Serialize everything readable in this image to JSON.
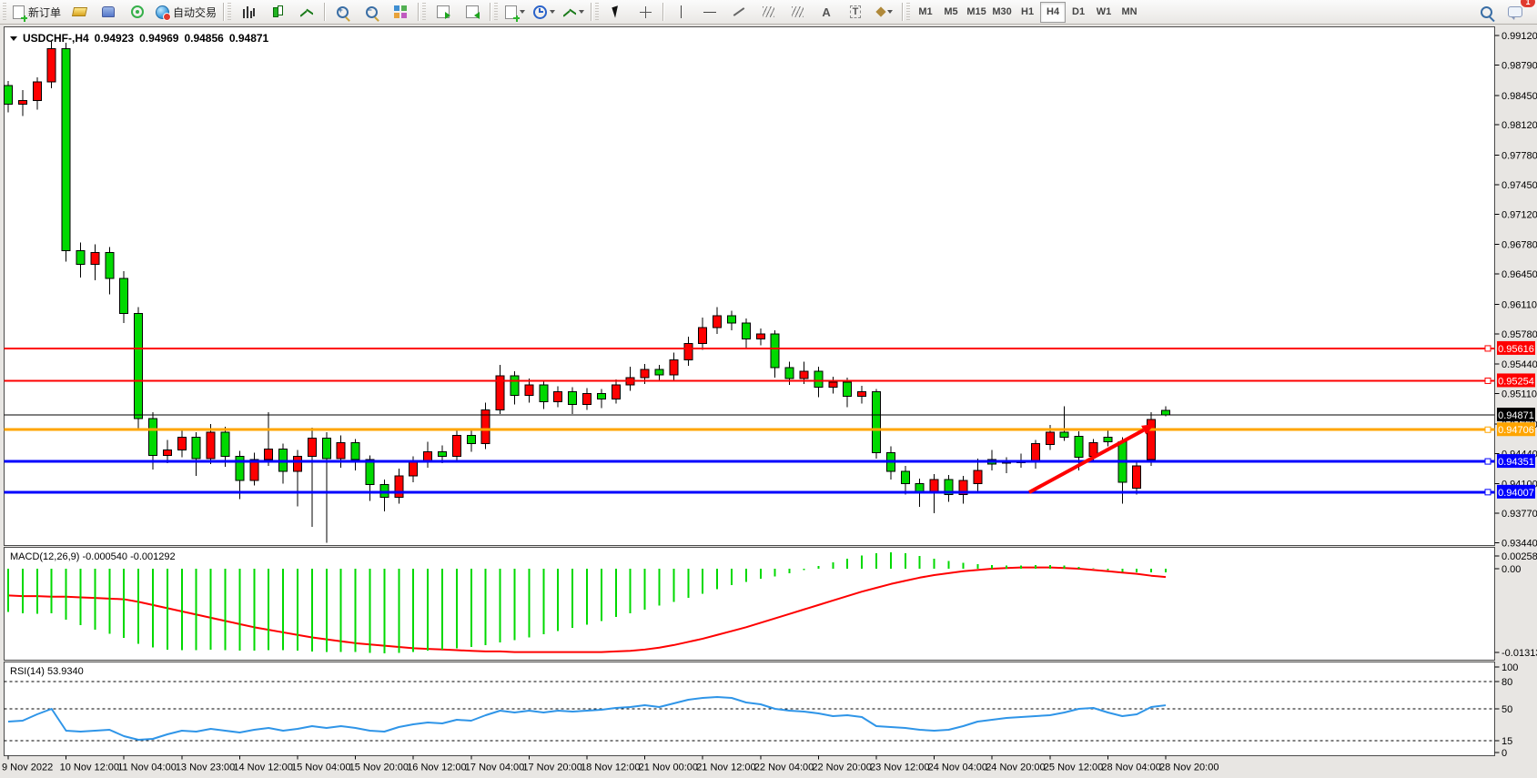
{
  "toolbar": {
    "new_order_label": "新订单",
    "autotrade_label": "自动交易",
    "text_tool_glyph": "A",
    "label_tool_glyph": "T",
    "timeframes": [
      "M1",
      "M5",
      "M15",
      "M30",
      "H1",
      "H4",
      "D1",
      "W1",
      "MN"
    ],
    "active_timeframe": "H4",
    "notification_badge": "1"
  },
  "chart": {
    "title": {
      "symbol_tf": "USDCHF-,H4",
      "open": "0.94923",
      "high": "0.94969",
      "low": "0.94856",
      "close": "0.94871"
    }
  },
  "chart_data": {
    "type": "candlestick",
    "symbol": "USDCHF-",
    "timeframe": "H4",
    "colors": {
      "bull": "#fe0000",
      "bear": "#00d900",
      "wick": "#000000",
      "background": "#ffffff",
      "border": "#4a4a4a"
    },
    "y_axis": {
      "min": 0.9344,
      "max": 0.9912,
      "ticks": [
        "0.99120",
        "0.98790",
        "0.98450",
        "0.98120",
        "0.97780",
        "0.97450",
        "0.97120",
        "0.96780",
        "0.96450",
        "0.96110",
        "0.95780",
        "0.95440",
        "0.95110",
        "0.94770",
        "0.94440",
        "0.94100",
        "0.93770",
        "0.93440"
      ]
    },
    "x_axis": {
      "bars_per_label": 4,
      "labels": [
        "9 Nov 2022",
        "10 Nov 12:00",
        "11 Nov 04:00",
        "13 Nov 23:00",
        "14 Nov 12:00",
        "15 Nov 04:00",
        "15 Nov 20:00",
        "16 Nov 12:00",
        "17 Nov 04:00",
        "17 Nov 20:00",
        "18 Nov 12:00",
        "21 Nov 00:00",
        "21 Nov 12:00",
        "22 Nov 04:00",
        "22 Nov 20:00",
        "23 Nov 12:00",
        "24 Nov 04:00",
        "24 Nov 20:00",
        "25 Nov 12:00",
        "28 Nov 04:00",
        "28 Nov 20:00"
      ]
    },
    "candles": [
      [
        0.9856,
        0.9861,
        0.9826,
        0.9835
      ],
      [
        0.9835,
        0.9851,
        0.9822,
        0.9839
      ],
      [
        0.9839,
        0.9865,
        0.9829,
        0.986
      ],
      [
        0.986,
        0.9906,
        0.9853,
        0.9897
      ],
      [
        0.9897,
        0.9904,
        0.9659,
        0.9671
      ],
      [
        0.9671,
        0.968,
        0.9641,
        0.9656
      ],
      [
        0.9656,
        0.9678,
        0.9638,
        0.9669
      ],
      [
        0.9669,
        0.9675,
        0.9622,
        0.964
      ],
      [
        0.964,
        0.9648,
        0.959,
        0.9601
      ],
      [
        0.9601,
        0.9608,
        0.947,
        0.9483
      ],
      [
        0.9483,
        0.949,
        0.9426,
        0.9442
      ],
      [
        0.9442,
        0.9459,
        0.9433,
        0.9448
      ],
      [
        0.9448,
        0.9471,
        0.944,
        0.9462
      ],
      [
        0.9462,
        0.9468,
        0.9419,
        0.9438
      ],
      [
        0.9438,
        0.9477,
        0.9432,
        0.9468
      ],
      [
        0.9468,
        0.9474,
        0.9429,
        0.9441
      ],
      [
        0.9441,
        0.9447,
        0.9393,
        0.9414
      ],
      [
        0.9414,
        0.9445,
        0.9408,
        0.9437
      ],
      [
        0.9437,
        0.949,
        0.943,
        0.9449
      ],
      [
        0.9449,
        0.9455,
        0.941,
        0.9424
      ],
      [
        0.9424,
        0.9448,
        0.9385,
        0.9441
      ],
      [
        0.9441,
        0.9473,
        0.9362,
        0.9461
      ],
      [
        0.9461,
        0.9468,
        0.9344,
        0.9438
      ],
      [
        0.9438,
        0.9464,
        0.9428,
        0.9456
      ],
      [
        0.9456,
        0.946,
        0.9425,
        0.9437
      ],
      [
        0.9437,
        0.9442,
        0.9391,
        0.9409
      ],
      [
        0.9409,
        0.9415,
        0.9379,
        0.9395
      ],
      [
        0.9395,
        0.9427,
        0.9388,
        0.9419
      ],
      [
        0.9419,
        0.9441,
        0.9412,
        0.9436
      ],
      [
        0.9436,
        0.9457,
        0.9428,
        0.9446
      ],
      [
        0.9446,
        0.9453,
        0.9433,
        0.9441
      ],
      [
        0.9441,
        0.9472,
        0.9435,
        0.9464
      ],
      [
        0.9464,
        0.947,
        0.9446,
        0.9455
      ],
      [
        0.9455,
        0.9501,
        0.9449,
        0.9493
      ],
      [
        0.9493,
        0.9543,
        0.9488,
        0.9531
      ],
      [
        0.9531,
        0.9536,
        0.9499,
        0.9509
      ],
      [
        0.9509,
        0.9528,
        0.9501,
        0.9521
      ],
      [
        0.9521,
        0.9526,
        0.9494,
        0.9502
      ],
      [
        0.9502,
        0.9519,
        0.9496,
        0.9513
      ],
      [
        0.9513,
        0.9518,
        0.9488,
        0.9499
      ],
      [
        0.9499,
        0.9517,
        0.9493,
        0.9511
      ],
      [
        0.9511,
        0.9516,
        0.9495,
        0.9505
      ],
      [
        0.9505,
        0.9527,
        0.95,
        0.9521
      ],
      [
        0.9521,
        0.9541,
        0.9514,
        0.9529
      ],
      [
        0.9529,
        0.9544,
        0.9522,
        0.9538
      ],
      [
        0.9538,
        0.9543,
        0.9525,
        0.9532
      ],
      [
        0.9532,
        0.9557,
        0.9526,
        0.9549
      ],
      [
        0.9549,
        0.9575,
        0.9542,
        0.9567
      ],
      [
        0.9567,
        0.9596,
        0.956,
        0.9585
      ],
      [
        0.9585,
        0.9608,
        0.9578,
        0.9598
      ],
      [
        0.9598,
        0.9604,
        0.9582,
        0.959
      ],
      [
        0.959,
        0.9595,
        0.9561,
        0.9572
      ],
      [
        0.9572,
        0.9584,
        0.9565,
        0.9578
      ],
      [
        0.9578,
        0.9582,
        0.9529,
        0.954
      ],
      [
        0.954,
        0.9547,
        0.9521,
        0.9528
      ],
      [
        0.9528,
        0.9547,
        0.9522,
        0.9536
      ],
      [
        0.9536,
        0.9541,
        0.9507,
        0.9518
      ],
      [
        0.9518,
        0.953,
        0.9511,
        0.9524
      ],
      [
        0.9524,
        0.9529,
        0.9496,
        0.9508
      ],
      [
        0.9508,
        0.952,
        0.95,
        0.9513
      ],
      [
        0.9513,
        0.9516,
        0.9438,
        0.9445
      ],
      [
        0.9445,
        0.9452,
        0.9415,
        0.9424
      ],
      [
        0.9424,
        0.943,
        0.9398,
        0.941
      ],
      [
        0.941,
        0.9416,
        0.9384,
        0.94
      ],
      [
        0.94,
        0.9421,
        0.9377,
        0.9415
      ],
      [
        0.9415,
        0.942,
        0.939,
        0.9398
      ],
      [
        0.9398,
        0.9419,
        0.9388,
        0.9414
      ],
      [
        0.941,
        0.9438,
        0.9402,
        0.9425
      ],
      [
        0.9437,
        0.9448,
        0.9425,
        0.9432
      ],
      [
        0.9433,
        0.944,
        0.9422,
        0.9435
      ],
      [
        0.9435,
        0.9444,
        0.9428,
        0.9434
      ],
      [
        0.9435,
        0.9459,
        0.9427,
        0.9455
      ],
      [
        0.9454,
        0.9476,
        0.9448,
        0.9468
      ],
      [
        0.9468,
        0.9497,
        0.9458,
        0.9462
      ],
      [
        0.9463,
        0.9469,
        0.9425,
        0.944
      ],
      [
        0.9441,
        0.946,
        0.9434,
        0.9456
      ],
      [
        0.9462,
        0.947,
        0.9452,
        0.9457
      ],
      [
        0.9457,
        0.9462,
        0.9388,
        0.9412
      ],
      [
        0.9405,
        0.9434,
        0.9398,
        0.943
      ],
      [
        0.9437,
        0.949,
        0.943,
        0.9482
      ],
      [
        0.94923,
        0.94969,
        0.94856,
        0.94871
      ]
    ],
    "horizontal_lines": [
      {
        "price": 0.95616,
        "tag": "0.95616",
        "color": "#fe0000",
        "width": 2,
        "anchor": true
      },
      {
        "price": 0.95254,
        "tag": "0.95254",
        "color": "#fe0000",
        "width": 2,
        "anchor": true
      },
      {
        "price": 0.94871,
        "tag": "0.94871",
        "color": "#000000",
        "width": 1,
        "anchor": false
      },
      {
        "price": 0.94706,
        "tag": "0.94706",
        "color": "#ffa500",
        "width": 3,
        "anchor": true
      },
      {
        "price": 0.94351,
        "tag": "0.94351",
        "color": "#0000fe",
        "width": 3,
        "anchor": true
      },
      {
        "price": 0.94007,
        "tag": "0.94007",
        "color": "#0000fe",
        "width": 3,
        "anchor": true
      }
    ],
    "current_price": "0.94871",
    "macd": {
      "label": "MACD(12,26,9)",
      "display_values": "-0.000540 -0.001292",
      "axis_labels": [
        "0.002587",
        "0.00",
        "-0.013133"
      ],
      "histogram_color": "#00d900",
      "signal_color": "#fe0000",
      "histogram": [
        -0.0068,
        -0.007,
        -0.0071,
        -0.007,
        -0.008,
        -0.0089,
        -0.0096,
        -0.0102,
        -0.0109,
        -0.0118,
        -0.0124,
        -0.0127,
        -0.0128,
        -0.0128,
        -0.0127,
        -0.0128,
        -0.0129,
        -0.0129,
        -0.0128,
        -0.0128,
        -0.0129,
        -0.013,
        -0.0131,
        -0.0131,
        -0.0131,
        -0.0132,
        -0.0133,
        -0.0132,
        -0.0131,
        -0.0129,
        -0.0127,
        -0.0125,
        -0.0123,
        -0.012,
        -0.0116,
        -0.0112,
        -0.0108,
        -0.0103,
        -0.0098,
        -0.0093,
        -0.0088,
        -0.0082,
        -0.0076,
        -0.007,
        -0.0064,
        -0.0058,
        -0.0052,
        -0.0046,
        -0.0039,
        -0.0032,
        -0.0026,
        -0.0021,
        -0.0016,
        -0.0012,
        -0.0007,
        -0.0002,
        0.0004,
        0.001,
        0.0016,
        0.0021,
        0.0024,
        0.0026,
        0.0024,
        0.002,
        0.0016,
        0.0012,
        0.0009,
        0.0007,
        0.0006,
        0.0005,
        0.0005,
        0.0006,
        0.0006,
        0.0005,
        0.0003,
        0.0001,
        -0.0002,
        -0.0005,
        -0.0006,
        -0.0006,
        -0.00054
      ],
      "signal": [
        -0.0042,
        -0.0043,
        -0.0043,
        -0.0044,
        -0.0044,
        -0.0045,
        -0.0046,
        -0.0047,
        -0.0048,
        -0.0052,
        -0.0057,
        -0.0062,
        -0.0067,
        -0.0072,
        -0.0077,
        -0.0082,
        -0.0087,
        -0.0092,
        -0.0096,
        -0.01,
        -0.0104,
        -0.0108,
        -0.0111,
        -0.0114,
        -0.0117,
        -0.0119,
        -0.0121,
        -0.0123,
        -0.0125,
        -0.0126,
        -0.0127,
        -0.0128,
        -0.0129,
        -0.013,
        -0.013,
        -0.0131,
        -0.0131,
        -0.0131,
        -0.0131,
        -0.0131,
        -0.0131,
        -0.0131,
        -0.013,
        -0.0129,
        -0.0127,
        -0.0124,
        -0.012,
        -0.0115,
        -0.011,
        -0.0104,
        -0.0098,
        -0.0092,
        -0.0085,
        -0.0078,
        -0.0071,
        -0.0064,
        -0.0057,
        -0.005,
        -0.0043,
        -0.0036,
        -0.003,
        -0.0024,
        -0.0019,
        -0.0014,
        -0.001,
        -0.0007,
        -0.0004,
        -0.0002,
        0.0,
        0.0001,
        0.0002,
        0.0002,
        0.0002,
        0.0001,
        0.0,
        -0.0002,
        -0.0004,
        -0.0006,
        -0.0008,
        -0.0011,
        -0.0013
      ]
    },
    "rsi": {
      "label": "RSI(14)",
      "display_value": "53.9340",
      "color": "#2f95e8",
      "axis_labels": [
        "100",
        "80",
        "50",
        "15",
        "0"
      ],
      "dashed_levels": [
        80,
        50,
        15
      ],
      "series": [
        36,
        37,
        44,
        50,
        26,
        25,
        26,
        27,
        20,
        16,
        17,
        22,
        26,
        25,
        28,
        26,
        24,
        27,
        29,
        26,
        28,
        31,
        29,
        31,
        29,
        26,
        25,
        30,
        33,
        35,
        34,
        38,
        37,
        43,
        48,
        46,
        48,
        46,
        48,
        47,
        48,
        49,
        51,
        52,
        54,
        52,
        56,
        60,
        62,
        63,
        62,
        57,
        55,
        50,
        48,
        47,
        45,
        42,
        43,
        41,
        31,
        30,
        29,
        27,
        26,
        27,
        31,
        36,
        38,
        40,
        41,
        42,
        43,
        46,
        50,
        51,
        46,
        42,
        44,
        52,
        53.934
      ]
    },
    "arrow_annotation": {
      "from": [
        1131,
        541
      ],
      "to": [
        1269,
        466
      ],
      "color": "#fe0000",
      "width": 4
    }
  }
}
